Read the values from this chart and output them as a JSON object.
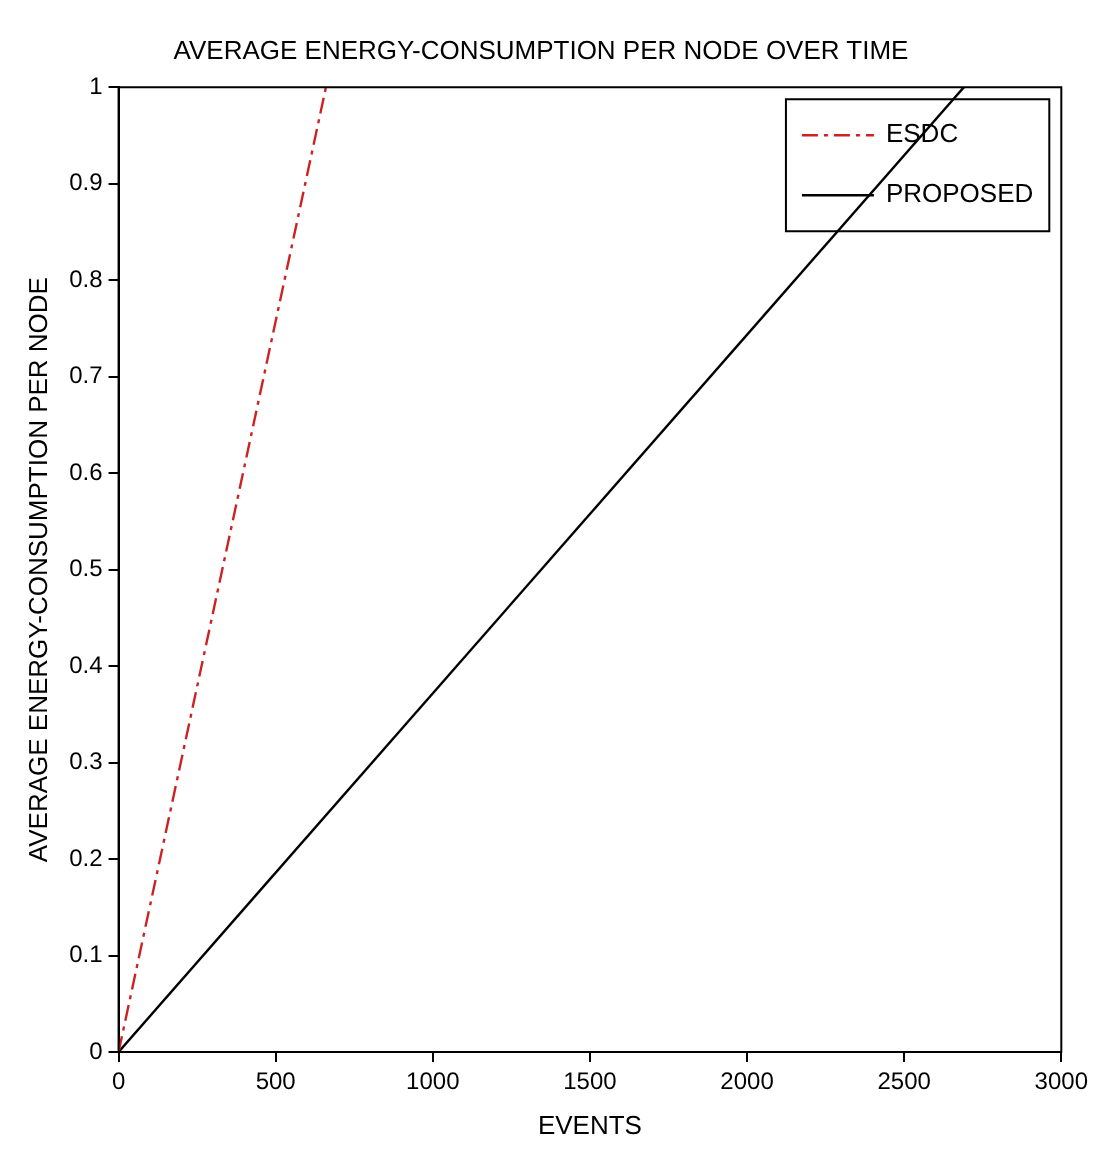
{
  "chart_data": {
    "type": "line",
    "title": "AVERAGE ENERGY-CONSUMPTION PER NODE OVER TIME",
    "xlabel": "EVENTS",
    "ylabel": "AVERAGE ENERGY-CONSUMPTION PER NODE",
    "series": [
      {
        "name": "ESDC",
        "color": "#cc2222",
        "line_style": "dashdot",
        "x": [
          0,
          660
        ],
        "values": [
          0,
          1
        ]
      },
      {
        "name": "PROPOSED",
        "color": "#000000",
        "line_style": "solid",
        "x": [
          0,
          2690
        ],
        "values": [
          0,
          1
        ]
      }
    ],
    "xlim": [
      0,
      3000
    ],
    "xticks": [
      0,
      500,
      1000,
      1500,
      2000,
      2500,
      3000
    ],
    "ylim": [
      0,
      1
    ],
    "yticks": [
      0,
      0.1,
      0.2,
      0.3,
      0.4,
      0.5,
      0.6,
      0.7,
      0.8,
      0.9,
      1
    ],
    "grid": false,
    "legend": "top right",
    "marker": "none"
  }
}
